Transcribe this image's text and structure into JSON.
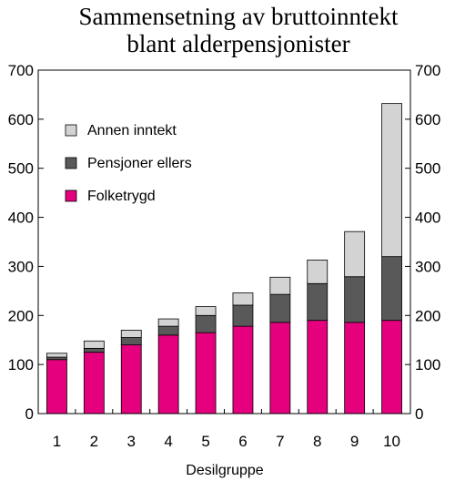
{
  "chart_data": {
    "type": "bar",
    "stacked": true,
    "title": [
      "Sammensetning av bruttoinntekt",
      "blant alderpensjonister"
    ],
    "xlabel": "Desilgruppe",
    "ylabel": "",
    "categories": [
      "1",
      "2",
      "3",
      "4",
      "5",
      "6",
      "7",
      "8",
      "9",
      "10"
    ],
    "ylim": [
      0,
      700
    ],
    "yticks": [
      0,
      100,
      200,
      300,
      400,
      500,
      600,
      700
    ],
    "secondary_y_axis": true,
    "legend_position": "top-left",
    "series": [
      {
        "name": "Folketrygd",
        "color": "#e5007e",
        "values": [
          110,
          125,
          140,
          160,
          165,
          178,
          186,
          190,
          186,
          190
        ]
      },
      {
        "name": "Pensjoner ellers",
        "color": "#595959",
        "values": [
          5,
          8,
          15,
          18,
          35,
          43,
          57,
          75,
          93,
          130
        ]
      },
      {
        "name": "Annen inntekt",
        "color": "#d3d3d3",
        "values": [
          8,
          15,
          15,
          15,
          18,
          25,
          35,
          48,
          92,
          312
        ]
      }
    ],
    "legend_order": [
      "Annen inntekt",
      "Pensjoner ellers",
      "Folketrygd"
    ]
  }
}
